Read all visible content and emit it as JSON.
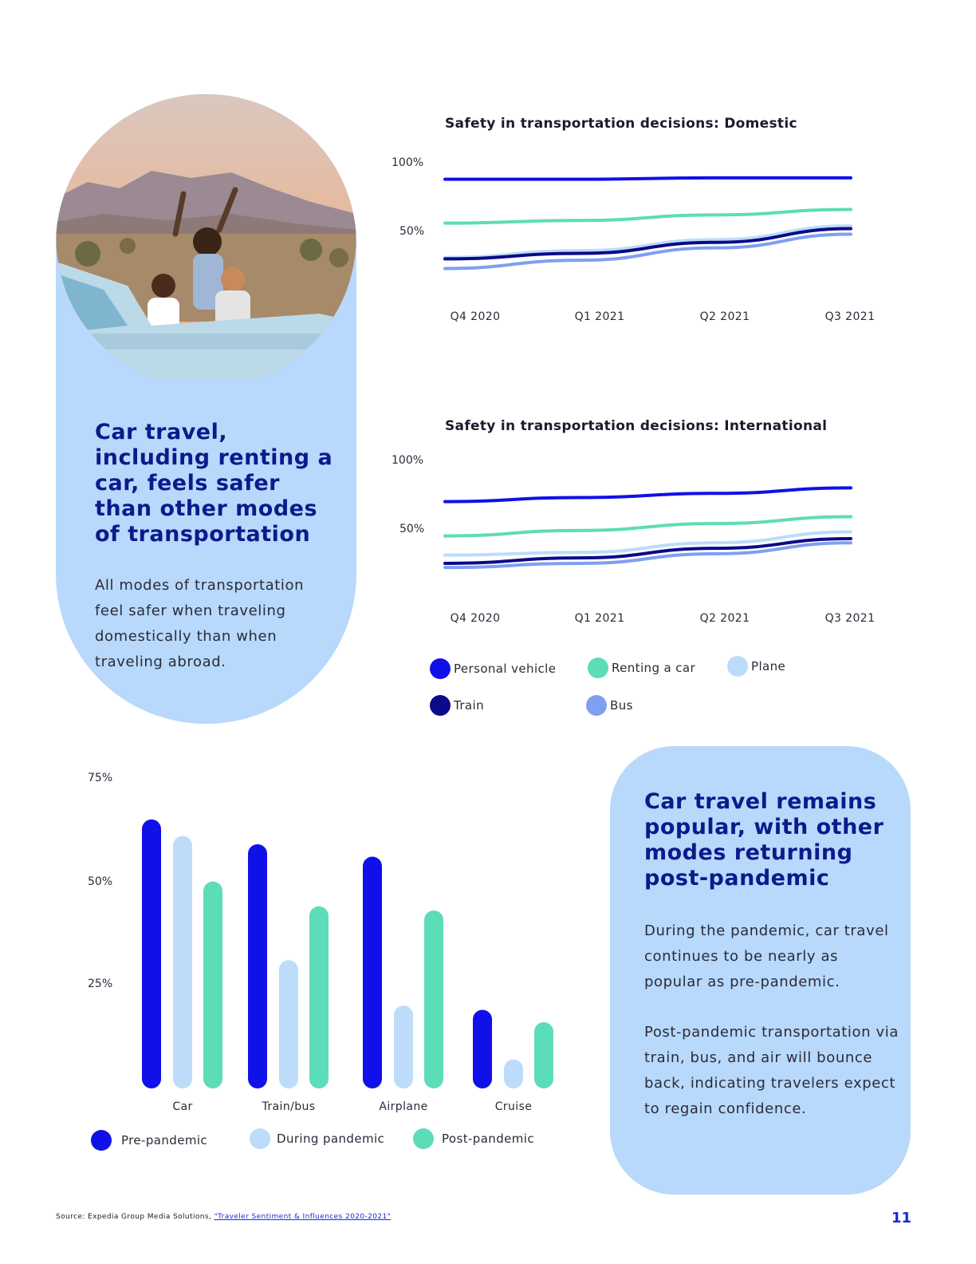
{
  "colors": {
    "card_bg": "#b8d9fb",
    "heading": "#0c1a8c",
    "personal_vehicle": "#1010e8",
    "renting_a_car": "#5ddcb8",
    "plane": "#bcdcfa",
    "train": "#0a0a8a",
    "bus": "#7f9ff0",
    "pre_pandemic": "#1010e8",
    "during_pandemic": "#bcdcfa",
    "post_pandemic": "#5ddcb8"
  },
  "left_card": {
    "photo_icon": "road-trip-photo",
    "heading": "Car travel, including renting a car, feels safer than other modes of transportation",
    "body": "All modes of transportation feel safer when traveling domestically than when traveling abroad."
  },
  "right_card": {
    "heading": "Car travel remains popular, with other modes returning post-pandemic",
    "body1": "During the pandemic, car travel continues to be nearly as popular as pre-pandemic.",
    "body2": "Post-pandemic transportation via train, bus, and air will bounce back, indicating travelers expect to regain confidence."
  },
  "line_legend": {
    "personal_vehicle": "Personal vehicle",
    "renting_a_car": "Renting a car",
    "plane": "Plane",
    "train": "Train",
    "bus": "Bus"
  },
  "bar_legend": {
    "pre": "Pre-pandemic",
    "during": "During pandemic",
    "post": "Post-pandemic"
  },
  "footer": {
    "source_prefix": "Source: Expedia Group Media Solutions, ",
    "source_link": "\"Traveler Sentiment & Influences 2020-2021\"",
    "page_number": "11"
  },
  "chart_data": [
    {
      "type": "line",
      "title": "Safety in transportation decisions: Domestic",
      "categories": [
        "Q4 2020",
        "Q1 2021",
        "Q2 2021",
        "Q3 2021"
      ],
      "yticks": [
        "100%",
        "50%"
      ],
      "ylim": [
        0,
        100
      ],
      "series": [
        {
          "name": "Personal vehicle",
          "color": "#1010e8",
          "values": [
            88,
            88,
            89,
            89
          ]
        },
        {
          "name": "Renting a car",
          "color": "#5ddcb8",
          "values": [
            56,
            58,
            62,
            66
          ]
        },
        {
          "name": "Plane",
          "color": "#bcdcfa",
          "values": [
            31,
            36,
            44,
            54
          ]
        },
        {
          "name": "Train",
          "color": "#0a0a8a",
          "values": [
            30,
            34,
            42,
            52
          ]
        },
        {
          "name": "Bus",
          "color": "#7f9ff0",
          "values": [
            23,
            29,
            38,
            48
          ]
        }
      ]
    },
    {
      "type": "line",
      "title": "Safety in transportation decisions: International",
      "categories": [
        "Q4 2020",
        "Q1 2021",
        "Q2 2021",
        "Q3 2021"
      ],
      "yticks": [
        "100%",
        "50%"
      ],
      "ylim": [
        0,
        100
      ],
      "series": [
        {
          "name": "Personal vehicle",
          "color": "#1010e8",
          "values": [
            70,
            73,
            76,
            80
          ]
        },
        {
          "name": "Renting a car",
          "color": "#5ddcb8",
          "values": [
            45,
            49,
            54,
            59
          ]
        },
        {
          "name": "Plane",
          "color": "#bcdcfa",
          "values": [
            31,
            33,
            40,
            48
          ]
        },
        {
          "name": "Train",
          "color": "#0a0a8a",
          "values": [
            25,
            29,
            36,
            43
          ]
        },
        {
          "name": "Bus",
          "color": "#7f9ff0",
          "values": [
            22,
            25,
            32,
            40
          ]
        }
      ]
    },
    {
      "type": "bar",
      "title": "",
      "categories": [
        "Car",
        "Train/bus",
        "Airplane",
        "Cruise"
      ],
      "yticks": [
        "75%",
        "50%",
        "25%"
      ],
      "ylim": [
        0,
        75
      ],
      "series": [
        {
          "name": "Pre-pandemic",
          "color": "#1010e8",
          "values": [
            65,
            59,
            56,
            19
          ]
        },
        {
          "name": "During pandemic",
          "color": "#bcdcfa",
          "values": [
            61,
            31,
            20,
            7
          ]
        },
        {
          "name": "Post-pandemic",
          "color": "#5ddcb8",
          "values": [
            50,
            44,
            43,
            16
          ]
        }
      ]
    }
  ]
}
